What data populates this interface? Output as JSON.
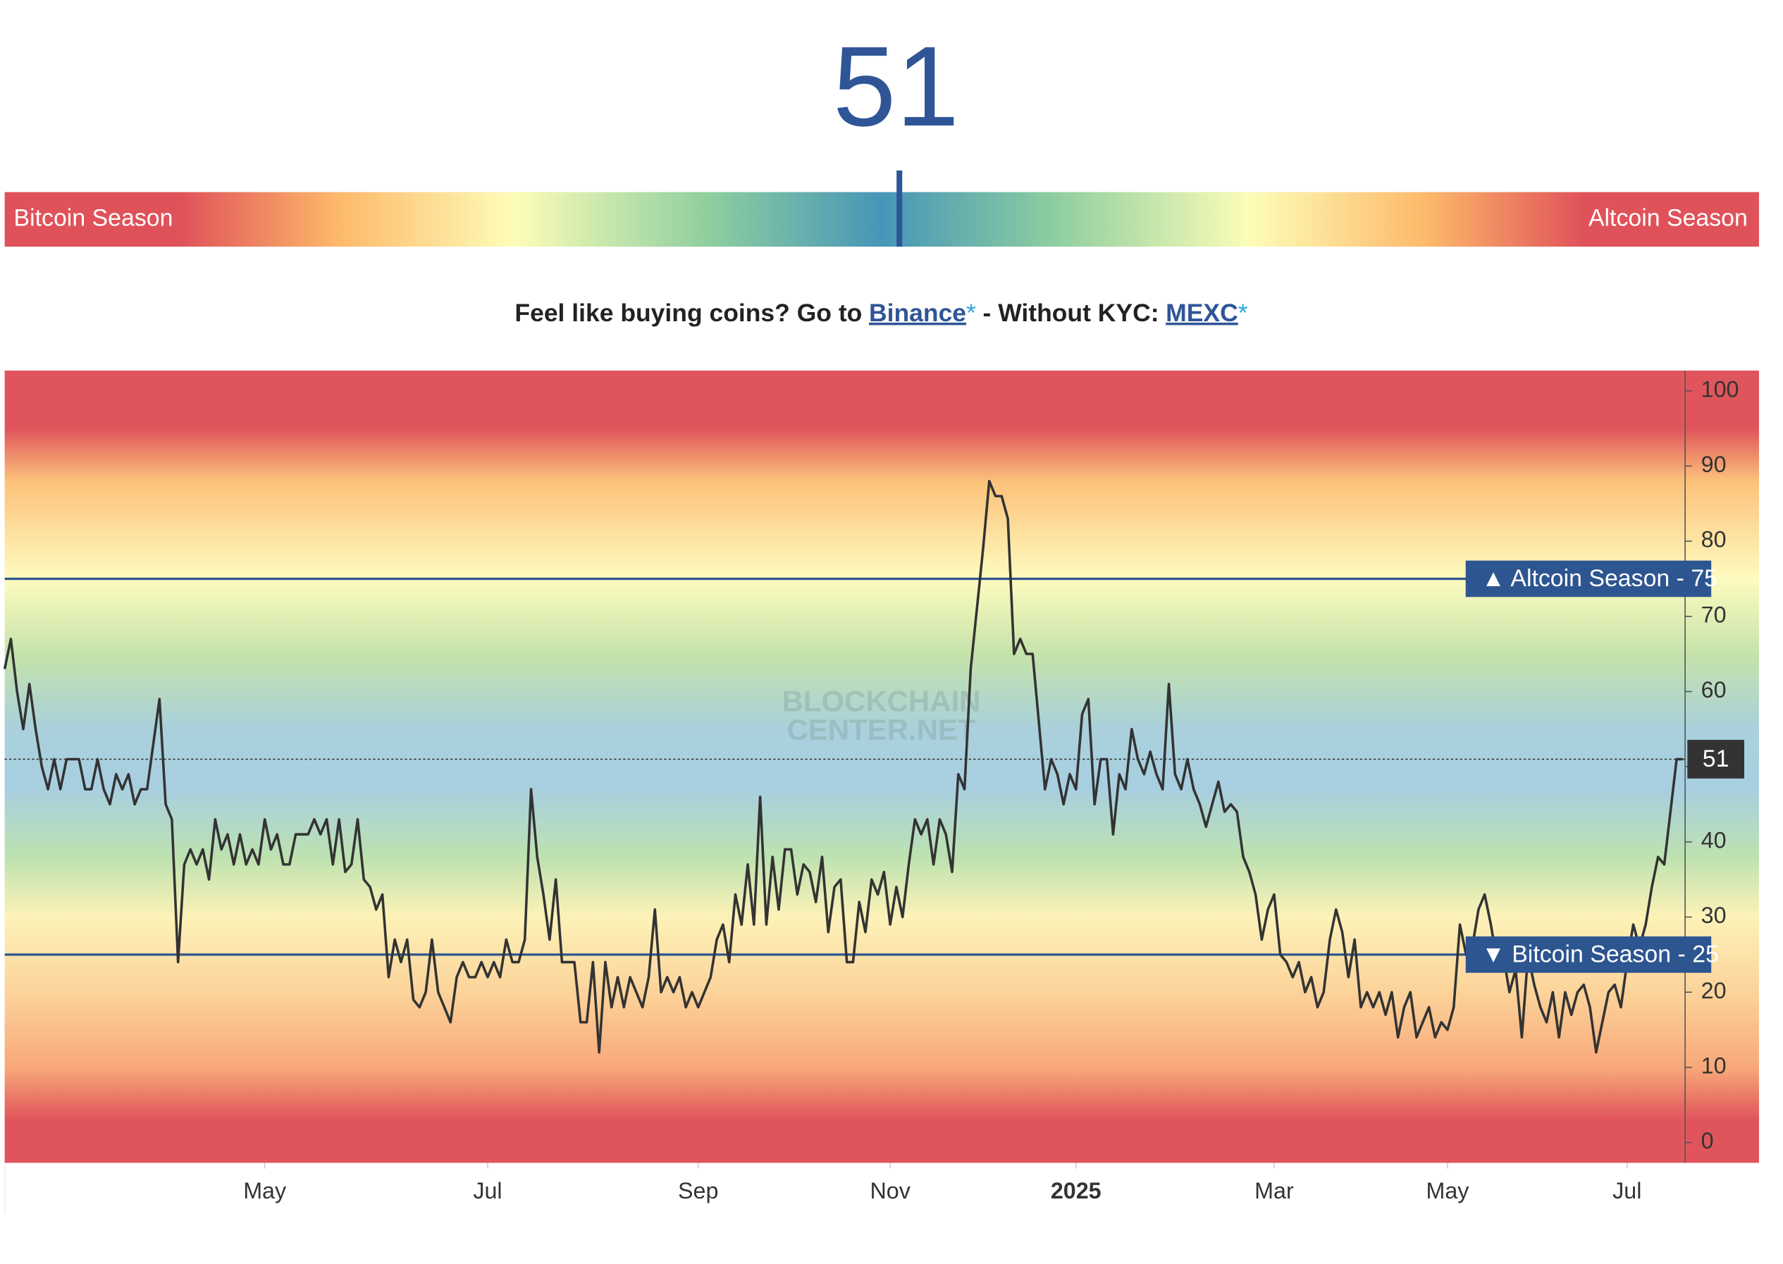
{
  "header": {
    "value": 51,
    "left_label": "Bitcoin Season",
    "right_label": "Altcoin Season"
  },
  "promo": {
    "text1": "Feel like buying coins? Go to",
    "link1": "Binance",
    "asterisk": "*",
    "text2": "- Without KYC:",
    "link2": "MEXC"
  },
  "chart_data": {
    "type": "line",
    "watermark": [
      "BLOCKCHAIN",
      "CENTER.NET"
    ],
    "color": "#333333",
    "values": [
      63,
      67,
      60,
      55,
      61,
      55,
      50,
      47,
      51,
      47,
      51,
      51,
      51,
      47,
      47,
      51,
      47,
      45,
      49,
      47,
      49,
      45,
      47,
      47,
      53,
      59,
      45,
      43,
      24,
      37,
      39,
      37,
      39,
      35,
      43,
      39,
      41,
      37,
      41,
      37,
      39,
      37,
      43,
      39,
      41,
      37,
      37,
      41,
      41,
      41,
      43,
      41,
      43,
      37,
      43,
      36,
      37,
      43,
      35,
      34,
      31,
      33,
      22,
      27,
      24,
      27,
      19,
      18,
      20,
      27,
      20,
      18,
      16,
      22,
      24,
      22,
      22,
      24,
      22,
      24,
      22,
      27,
      24,
      24,
      27,
      47,
      38,
      33,
      27,
      35,
      24,
      24,
      24,
      16,
      16,
      24,
      12,
      24,
      18,
      22,
      18,
      22,
      20,
      18,
      22,
      31,
      20,
      22,
      20,
      22,
      18,
      20,
      18,
      20,
      22,
      27,
      29,
      24,
      33,
      29,
      37,
      29,
      46,
      29,
      38,
      31,
      39,
      39,
      33,
      37,
      36,
      32,
      38,
      28,
      34,
      35,
      24,
      24,
      32,
      28,
      35,
      33,
      36,
      29,
      34,
      30,
      37,
      43,
      41,
      43,
      37,
      43,
      41,
      36,
      49,
      47,
      63,
      71,
      79,
      88,
      86,
      86,
      83,
      65,
      67,
      65,
      65,
      56,
      47,
      51,
      49,
      45,
      49,
      47,
      57,
      59,
      45,
      51,
      51,
      41,
      49,
      47,
      55,
      51,
      49,
      52,
      49,
      47,
      61,
      49,
      47,
      51,
      47,
      45,
      42,
      45,
      48,
      44,
      45,
      44,
      38,
      36,
      33,
      27,
      31,
      33,
      25,
      24,
      22,
      24,
      20,
      22,
      18,
      20,
      27,
      31,
      28,
      22,
      27,
      18,
      20,
      18,
      20,
      17,
      20,
      14,
      18,
      20,
      14,
      16,
      18,
      14,
      16,
      15,
      18,
      29,
      25,
      26,
      31,
      33,
      29,
      24,
      25,
      20,
      23,
      14,
      25,
      21,
      18,
      16,
      20,
      14,
      20,
      17,
      20,
      21,
      18,
      12,
      16,
      20,
      21,
      18,
      24,
      29,
      26,
      29,
      34,
      38,
      37,
      44,
      51,
      51
    ],
    "xlim": [
      0,
      271
    ],
    "xticks": [
      {
        "value": 42,
        "label": "May"
      },
      {
        "value": 78,
        "label": "Jul"
      },
      {
        "value": 112,
        "label": "Sep"
      },
      {
        "value": 143,
        "label": "Nov"
      },
      {
        "value": 173,
        "label": "2025"
      },
      {
        "value": 205,
        "label": "Mar"
      },
      {
        "value": 233,
        "label": "May"
      },
      {
        "value": 262,
        "label": "Jul"
      }
    ],
    "ylim": [
      -2.7,
      102.7
    ],
    "yticks": [
      0,
      10,
      20,
      30,
      40,
      50,
      60,
      70,
      80,
      90,
      100
    ],
    "thresholds": [
      {
        "label": "▲ Altcoin Season - 75",
        "value": 75,
        "color": "#2d5590"
      },
      {
        "label": "▼ Bitcoin Season - 25",
        "value": 25,
        "color": "#2d5590"
      }
    ],
    "current": 51
  }
}
